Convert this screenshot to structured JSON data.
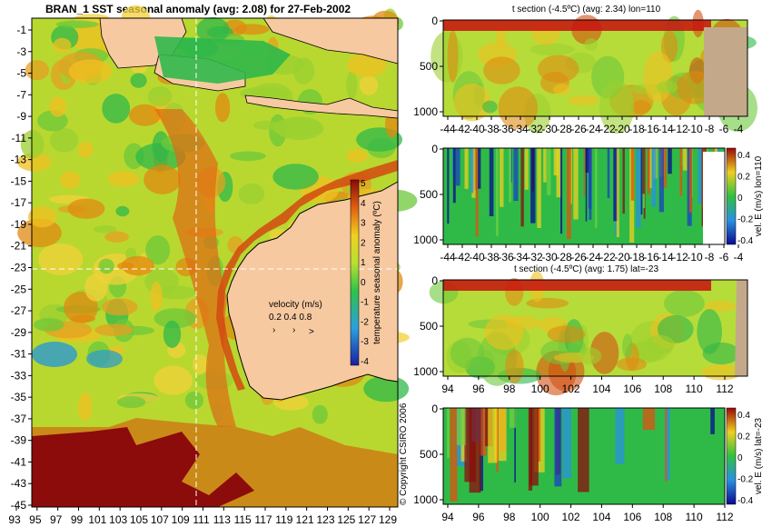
{
  "map": {
    "title": "BRAN_1 SST seasonal anomaly (avg: 2.08) for 27-Feb-2002",
    "lon_ticks": [
      "93",
      "95",
      "97",
      "99",
      "101",
      "103",
      "105",
      "107",
      "109",
      "111",
      "113",
      "115",
      "117",
      "119",
      "121",
      "123",
      "125",
      "127",
      "129"
    ],
    "lat_ticks": [
      "-1",
      "-3",
      "-5",
      "-7",
      "-9",
      "-11",
      "-13",
      "-15",
      "-17",
      "-19",
      "-21",
      "-23",
      "-25",
      "-27",
      "-29",
      "-31",
      "-33",
      "-35",
      "-37",
      "-39",
      "-41",
      "-43",
      "-45"
    ],
    "colorbar": {
      "label": "temperature seasonal anomaly (ºC)",
      "ticks": [
        "5",
        "4",
        "3",
        "2",
        "1",
        "0",
        "-1",
        "-2",
        "-3",
        "-4"
      ]
    },
    "velocity": {
      "label": "velocity (m/s)",
      "scale": "0.2 0.4 0.8"
    },
    "copyright": "© Copyright CSIRO 2006",
    "section_lines": {
      "lon": "110",
      "lat": "-23"
    }
  },
  "panels": [
    {
      "title": "t section (-4.5ºC) (avg: 2.34) lon=110",
      "x_ticks": [
        "-44",
        "-42",
        "-40",
        "-38",
        "-36",
        "-34",
        "-32",
        "-30",
        "-28",
        "-26",
        "-24",
        "-22",
        "-20",
        "-18",
        "-16",
        "-14",
        "-12",
        "-10",
        "-8",
        "-6",
        "-4"
      ],
      "y_ticks": [
        "0",
        "500",
        "1000"
      ],
      "colorbar_label": "",
      "colorbar_ticks": []
    },
    {
      "title": "",
      "x_ticks": [
        "-44",
        "-42",
        "-40",
        "-38",
        "-36",
        "-34",
        "-32",
        "-30",
        "-28",
        "-26",
        "-24",
        "-22",
        "-20",
        "-18",
        "-16",
        "-14",
        "-12",
        "-10",
        "-8",
        "-6",
        "-4"
      ],
      "y_ticks": [
        "0",
        "500",
        "1000"
      ],
      "colorbar_label": "vel. E (m/s) lon=110",
      "colorbar_ticks": [
        "0.4",
        "0.2",
        "0",
        "-0.2",
        "-0.4"
      ]
    },
    {
      "title": "t section (-4.5ºC) (avg: 1.75) lat=-23",
      "x_ticks": [
        "94",
        "96",
        "98",
        "100",
        "102",
        "104",
        "106",
        "108",
        "110",
        "112"
      ],
      "y_ticks": [
        "0",
        "500",
        "1000"
      ],
      "colorbar_label": "",
      "colorbar_ticks": []
    },
    {
      "title": "",
      "x_ticks": [
        "94",
        "96",
        "98",
        "100",
        "102",
        "104",
        "106",
        "108",
        "110",
        "112"
      ],
      "y_ticks": [
        "0",
        "500",
        "1000"
      ],
      "colorbar_label": "vel. E (m/s) lat=-23",
      "colorbar_ticks": [
        "0.4",
        "0.2",
        "0",
        "-0.2",
        "-0.4"
      ]
    }
  ],
  "colors": {
    "land": "#f7c9a1",
    "section_land": "#c4a88a",
    "anomaly_low": "#1d2fb0",
    "anomaly_mid": "#36c23a",
    "anomaly_high": "#8c0b0b"
  }
}
